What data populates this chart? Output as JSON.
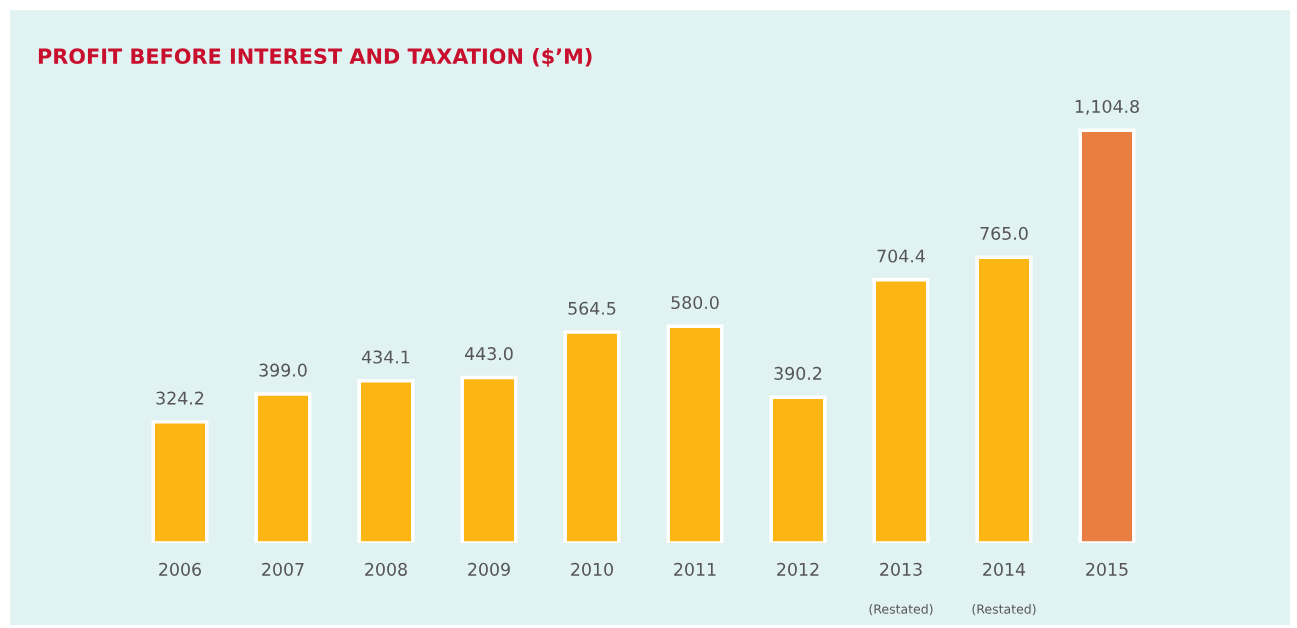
{
  "chart_data": {
    "type": "bar",
    "title": "PROFIT BEFORE INTEREST AND TAXATION ($’M)",
    "categories": [
      "2006",
      "2007",
      "2008",
      "2009",
      "2010",
      "2011",
      "2012",
      "2013\n(Restated)",
      "2014\n(Restated)",
      "2015"
    ],
    "values": [
      324.2,
      399.0,
      434.1,
      443.0,
      564.5,
      580.0,
      390.2,
      704.4,
      765.0,
      1104.8
    ],
    "colors": [
      "#fbb614",
      "#fbb614",
      "#fbb614",
      "#fbb614",
      "#fbb614",
      "#fbb614",
      "#fbb614",
      "#fbb614",
      "#fbb614",
      "#e97e42"
    ],
    "value_labels": [
      "324.2",
      "399.0",
      "434.1",
      "443.0",
      "564.5",
      "580.0",
      "390.2",
      "704.4",
      "765.0",
      "1,104.8"
    ],
    "tick_labels": "x",
    "grid": false,
    "legend": false
  }
}
